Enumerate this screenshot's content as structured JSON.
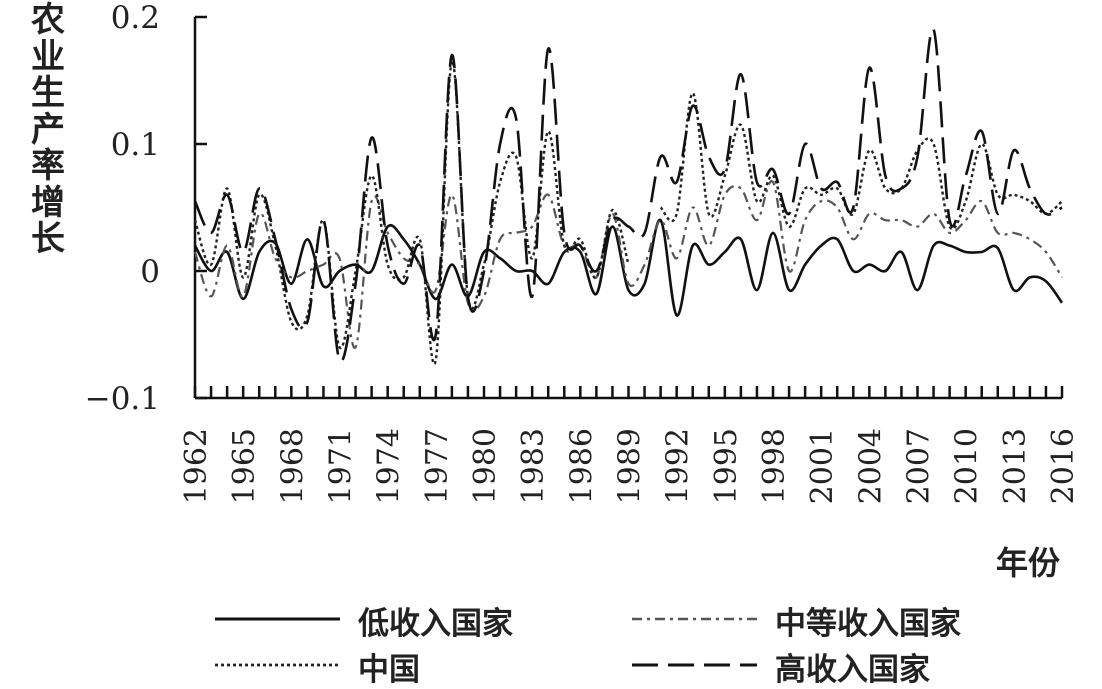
{
  "chart_data": {
    "type": "line",
    "title": "",
    "ylabel": "农业生产率增长",
    "xlabel": "年份",
    "ylim": [
      -0.1,
      0.2
    ],
    "yticks": [
      -0.1,
      0,
      0.1,
      0.2
    ],
    "ytick_labels": [
      "−0.1",
      "0",
      "0.1",
      "0.2"
    ],
    "xlim": [
      1962,
      2016
    ],
    "xticks": [
      1962,
      1965,
      1968,
      1971,
      1974,
      1977,
      1980,
      1983,
      1986,
      1989,
      1992,
      1995,
      1998,
      2001,
      2004,
      2007,
      2010,
      2013,
      2016
    ],
    "legend_position": "bottom",
    "grid": false,
    "series": [
      {
        "name": "低收入国家",
        "style": "solid",
        "color": "#111111",
        "values": [
          0.02,
          0.0,
          0.015,
          -0.022,
          0.015,
          0.022,
          -0.01,
          0.025,
          -0.012,
          0.0,
          0.005,
          0.0,
          0.035,
          0.025,
          0.005,
          -0.022,
          0.005,
          -0.02,
          0.015,
          0.01,
          0.0,
          0.0,
          -0.01,
          0.015,
          0.015,
          -0.018,
          0.035,
          -0.015,
          -0.01,
          0.04,
          -0.035,
          0.02,
          0.005,
          0.015,
          0.025,
          -0.015,
          0.03,
          -0.015,
          0.005,
          0.02,
          0.025,
          0.0,
          0.005,
          0.0,
          0.015,
          -0.015,
          0.02,
          0.02,
          0.015,
          0.015,
          0.018,
          -0.015,
          -0.005,
          -0.008,
          -0.025
        ]
      },
      {
        "name": "中等收入国家",
        "style": "dashdot",
        "color": "#555555",
        "values": [
          0.015,
          -0.02,
          0.02,
          -0.02,
          0.045,
          0.01,
          -0.005,
          0.0,
          0.005,
          0.01,
          -0.06,
          0.055,
          0.03,
          0.01,
          0.005,
          -0.015,
          0.06,
          -0.025,
          -0.02,
          0.025,
          0.03,
          0.035,
          0.06,
          0.02,
          0.02,
          -0.005,
          0.045,
          -0.01,
          0.005,
          0.04,
          0.01,
          0.05,
          0.02,
          0.06,
          0.065,
          0.04,
          0.07,
          0.0,
          0.04,
          0.055,
          0.05,
          0.025,
          0.045,
          0.04,
          0.04,
          0.035,
          0.045,
          0.03,
          0.04,
          0.055,
          0.03,
          0.03,
          0.025,
          0.015,
          -0.005
        ]
      },
      {
        "name": "中国",
        "style": "dotted",
        "color": "#222222",
        "values": [
          0.04,
          0.005,
          0.065,
          -0.005,
          0.06,
          0.02,
          -0.04,
          -0.035,
          0.04,
          -0.06,
          0.0,
          0.075,
          0.005,
          -0.005,
          0.025,
          -0.07,
          0.165,
          -0.02,
          0.005,
          0.07,
          0.09,
          0.01,
          0.11,
          0.02,
          0.025,
          -0.005,
          0.048,
          0.005,
          null,
          0.05,
          0.045,
          0.14,
          0.045,
          0.075,
          0.115,
          0.055,
          0.075,
          0.035,
          0.065,
          0.06,
          0.065,
          0.045,
          0.095,
          0.065,
          0.065,
          0.095,
          0.1,
          0.035,
          0.055,
          0.1,
          0.06,
          0.06,
          0.055,
          0.045,
          0.055
        ]
      },
      {
        "name": "高收入国家",
        "style": "dashed",
        "color": "#111111",
        "values": [
          0.055,
          0.03,
          0.06,
          0.015,
          0.065,
          0.025,
          -0.03,
          -0.04,
          0.04,
          -0.07,
          -0.01,
          0.105,
          0.02,
          -0.01,
          0.02,
          -0.05,
          0.17,
          -0.02,
          0.0,
          0.1,
          0.12,
          -0.02,
          0.175,
          0.03,
          0.02,
          0.0,
          0.04,
          0.035,
          0.03,
          0.09,
          0.07,
          0.13,
          0.09,
          0.08,
          0.155,
          0.07,
          0.08,
          0.045,
          0.1,
          0.065,
          0.07,
          0.05,
          0.16,
          0.075,
          0.065,
          0.09,
          0.19,
          0.04,
          0.075,
          0.11,
          0.045,
          0.095,
          0.065,
          0.045,
          0.05
        ]
      }
    ]
  }
}
